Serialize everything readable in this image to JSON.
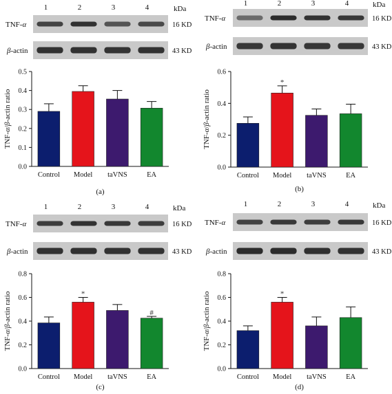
{
  "units_label": "kDa",
  "blot_rows": [
    {
      "protein": "TNF-α",
      "size": "16 KD"
    },
    {
      "protein": "β-actin",
      "size": "43 KD"
    }
  ],
  "chart_data": [
    {
      "type": "bar",
      "panel_label": "(a)",
      "lanes": [
        "1",
        "2",
        "3",
        "4"
      ],
      "categories": [
        "Control",
        "Model",
        "taVNS",
        "EA"
      ],
      "values": [
        0.29,
        0.395,
        0.355,
        0.307
      ],
      "errors": [
        0.04,
        0.03,
        0.045,
        0.035
      ],
      "annotations": [
        "",
        "",
        "",
        ""
      ],
      "ylabel": "TNF-α/β-actin ratio",
      "ylim": [
        0,
        0.5
      ],
      "yticks": [
        "0.0",
        "0.1",
        "0.2",
        "0.3",
        "0.4",
        "0.5"
      ],
      "colors": [
        "#0c1e6e",
        "#e5141b",
        "#3d1a6e",
        "#12872e"
      ]
    },
    {
      "type": "bar",
      "panel_label": "(b)",
      "lanes": [
        "1",
        "2",
        "3",
        "4"
      ],
      "categories": [
        "Control",
        "Model",
        "taVNS",
        "EA"
      ],
      "values": [
        0.275,
        0.465,
        0.325,
        0.335
      ],
      "errors": [
        0.04,
        0.045,
        0.04,
        0.06
      ],
      "annotations": [
        "",
        "*",
        "",
        ""
      ],
      "ylabel": "TNF-α/β-actin ratio",
      "ylim": [
        0,
        0.6
      ],
      "yticks": [
        "0.0",
        "0.2",
        "0.4",
        "0.6"
      ],
      "colors": [
        "#0c1e6e",
        "#e5141b",
        "#3d1a6e",
        "#12872e"
      ]
    },
    {
      "type": "bar",
      "panel_label": "(c)",
      "lanes": [
        "1",
        "2",
        "3",
        "4"
      ],
      "categories": [
        "Control",
        "Model",
        "taVNS",
        "EA"
      ],
      "values": [
        0.385,
        0.56,
        0.49,
        0.425
      ],
      "errors": [
        0.05,
        0.04,
        0.05,
        0.015
      ],
      "annotations": [
        "",
        "*",
        "",
        "#"
      ],
      "ylabel": "TNF-α/β-actin ratio",
      "ylim": [
        0,
        0.8
      ],
      "yticks": [
        "0.0",
        "0.2",
        "0.4",
        "0.6",
        "0.8"
      ],
      "colors": [
        "#0c1e6e",
        "#e5141b",
        "#3d1a6e",
        "#12872e"
      ]
    },
    {
      "type": "bar",
      "panel_label": "(d)",
      "lanes": [
        "1",
        "2",
        "3",
        "4"
      ],
      "categories": [
        "Control",
        "Model",
        "taVNS",
        "EA"
      ],
      "values": [
        0.32,
        0.56,
        0.36,
        0.43
      ],
      "errors": [
        0.04,
        0.04,
        0.075,
        0.09
      ],
      "annotations": [
        "",
        "*",
        "",
        ""
      ],
      "ylabel": "TNF-α/β-actin ratio",
      "ylim": [
        0,
        0.8
      ],
      "yticks": [
        "0.0",
        "0.2",
        "0.4",
        "0.6",
        "0.8"
      ],
      "colors": [
        "#0c1e6e",
        "#e5141b",
        "#3d1a6e",
        "#12872e"
      ]
    }
  ]
}
